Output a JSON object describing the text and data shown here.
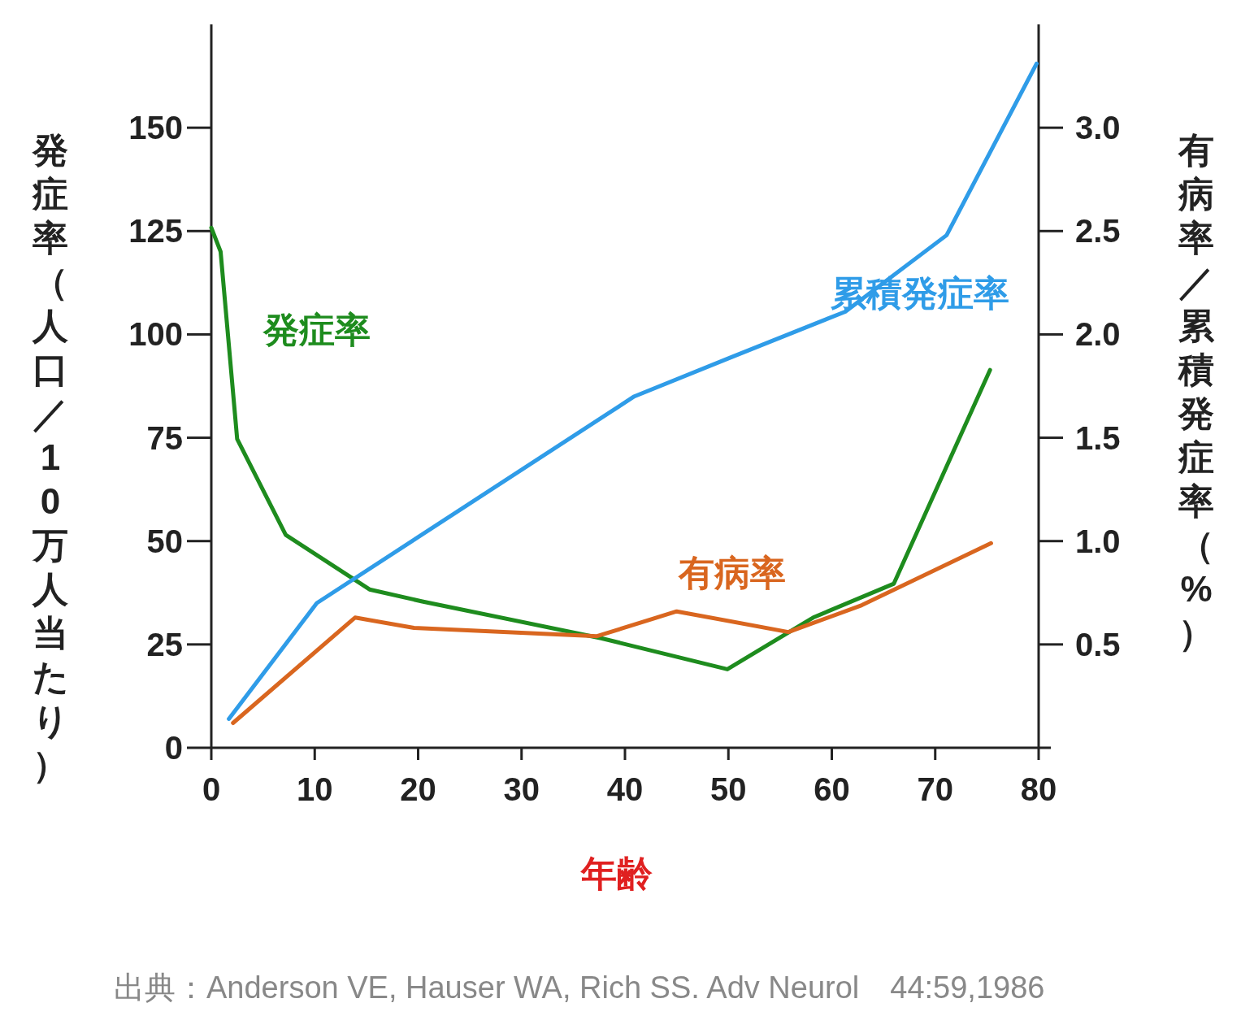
{
  "chart_data": {
    "type": "line",
    "xlabel": "年齢",
    "ylabel": "発症率（人口／10万人当たり）",
    "y2label": "有病率／累積発症率（%）",
    "xlim": [
      0,
      80
    ],
    "xticks": [
      0,
      10,
      20,
      30,
      40,
      50,
      60,
      70,
      80
    ],
    "ylim": [
      0,
      175
    ],
    "yticks": [
      0,
      25,
      50,
      75,
      100,
      125,
      150
    ],
    "y2lim": [
      0,
      3.5
    ],
    "y2ticks": [
      0.5,
      {
        "value": 1,
        "label": "1.0"
      },
      1.5,
      {
        "value": 2,
        "label": "2.0"
      },
      2.5,
      {
        "value": 3,
        "label": "3.0"
      }
    ],
    "grid": false,
    "legend": false,
    "marker": "none",
    "line_style": "solid",
    "series": [
      {
        "name": "発症率",
        "color": "#1e8c1e",
        "x": [
          0,
          0.9,
          2.5,
          7.2,
          15.3,
          20.4,
          37.7,
          49.9,
          58.2,
          66,
          75.3
        ],
        "values": [
          125.8,
          120,
          74.7,
          51.5,
          38.3,
          35.4,
          26.5,
          19,
          31.5,
          39.7,
          91.4
        ]
      },
      {
        "name": "累積発症率",
        "color": "#2f9ce8",
        "axis": "y2",
        "x": [
          1.7,
          10.2,
          40.9,
          50.3,
          61.3,
          71.1,
          79.8
        ],
        "values": [
          0.14,
          0.7,
          1.7,
          1.89,
          2.11,
          2.48,
          3.31
        ]
      },
      {
        "name": "有病率",
        "color": "#d9661f",
        "axis": "y2",
        "x": [
          2.1,
          13.9,
          19.6,
          37.3,
          45,
          55.8,
          62.9,
          75.4
        ],
        "values": [
          0.12,
          0.63,
          0.58,
          0.54,
          0.66,
          0.56,
          0.69,
          0.99
        ]
      }
    ],
    "annotations": [
      "出典：Anderson VE, Hauser WA, Rich SS. Adv Neurol　44:59,1986"
    ]
  }
}
